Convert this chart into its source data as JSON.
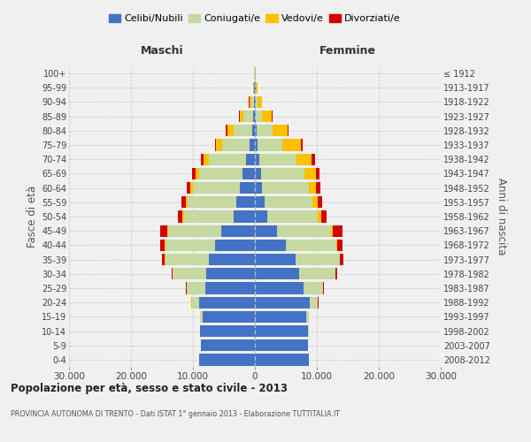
{
  "age_groups": [
    "0-4",
    "5-9",
    "10-14",
    "15-19",
    "20-24",
    "25-29",
    "30-34",
    "35-39",
    "40-44",
    "45-49",
    "50-54",
    "55-59",
    "60-64",
    "65-69",
    "70-74",
    "75-79",
    "80-84",
    "85-89",
    "90-94",
    "95-99",
    "100+"
  ],
  "birth_years": [
    "2008-2012",
    "2003-2007",
    "1998-2002",
    "1993-1997",
    "1988-1992",
    "1983-1987",
    "1978-1982",
    "1973-1977",
    "1968-1972",
    "1963-1967",
    "1958-1962",
    "1953-1957",
    "1948-1952",
    "1943-1947",
    "1938-1942",
    "1933-1937",
    "1928-1932",
    "1923-1927",
    "1918-1922",
    "1913-1917",
    "≤ 1912"
  ],
  "colors": {
    "celibi": "#4472c4",
    "coniugati": "#c5d9a0",
    "vedovi": "#ffc000",
    "divorziati": "#d40000"
  },
  "maschi": {
    "celibi": [
      9000,
      8700,
      8800,
      8500,
      9000,
      8000,
      7800,
      7500,
      6500,
      5500,
      3500,
      3000,
      2500,
      2000,
      1500,
      800,
      500,
      300,
      200,
      100,
      50
    ],
    "coniugati": [
      10,
      20,
      50,
      300,
      1200,
      3000,
      5500,
      7000,
      8000,
      8500,
      8000,
      7800,
      7500,
      7000,
      6000,
      4500,
      3000,
      1500,
      400,
      100,
      30
    ],
    "vedovi": [
      2,
      3,
      5,
      10,
      20,
      30,
      50,
      80,
      100,
      150,
      200,
      300,
      400,
      600,
      800,
      1000,
      1000,
      700,
      300,
      80,
      20
    ],
    "divorziati": [
      1,
      2,
      5,
      15,
      40,
      80,
      150,
      400,
      700,
      1200,
      800,
      700,
      600,
      500,
      400,
      200,
      150,
      100,
      50,
      20,
      5
    ]
  },
  "femmine": {
    "celibi": [
      8700,
      8500,
      8600,
      8300,
      8800,
      7800,
      7200,
      6500,
      5000,
      3500,
      2000,
      1500,
      1200,
      1000,
      700,
      400,
      300,
      200,
      150,
      80,
      30
    ],
    "coniugati": [
      15,
      25,
      60,
      350,
      1400,
      3200,
      5800,
      7200,
      8200,
      8800,
      8200,
      7800,
      7500,
      7000,
      6000,
      4000,
      2500,
      1000,
      300,
      80,
      20
    ],
    "vedovi": [
      1,
      2,
      3,
      5,
      10,
      20,
      40,
      80,
      150,
      300,
      500,
      800,
      1200,
      1800,
      2500,
      3000,
      2500,
      1500,
      700,
      200,
      50
    ],
    "divorziati": [
      1,
      2,
      5,
      20,
      50,
      100,
      200,
      500,
      800,
      1500,
      900,
      800,
      700,
      600,
      500,
      250,
      150,
      100,
      50,
      20,
      5
    ]
  },
  "xlim": 30000,
  "xlabel_ticks": [
    -30000,
    -20000,
    -10000,
    0,
    10000,
    20000,
    30000
  ],
  "xlabel_labels": [
    "30.000",
    "20.000",
    "10.000",
    "0",
    "10.000",
    "20.000",
    "30.000"
  ],
  "title": "Popolazione per età, sesso e stato civile - 2013",
  "subtitle": "PROVINCIA AUTONOMA DI TRENTO - Dati ISTAT 1° gennaio 2013 - Elaborazione TUTTITALIA.IT",
  "ylabel_left": "Fasce di età",
  "ylabel_right": "Anni di nascita",
  "header_left": "Maschi",
  "header_right": "Femmine",
  "legend_labels": [
    "Celibi/Nubili",
    "Coniugati/e",
    "Vedovi/e",
    "Divorziati/e"
  ],
  "bg_color": "#f0f0f0",
  "grid_color": "#cccccc"
}
